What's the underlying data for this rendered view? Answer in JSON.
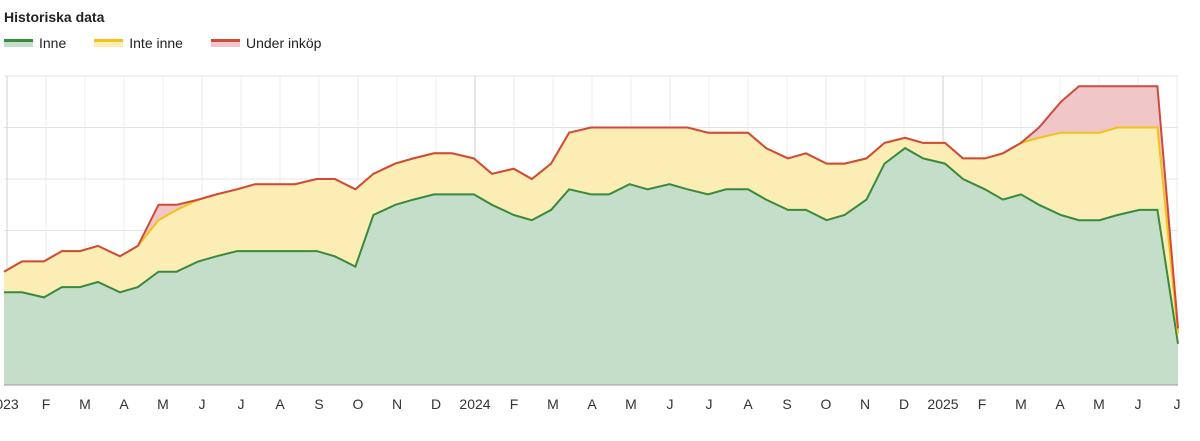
{
  "chart_data": {
    "type": "area",
    "title": "Historiska data",
    "xlabel": "",
    "ylabel": "",
    "grid": true,
    "legend_position": "top-left",
    "x_tick_labels": [
      "023",
      "F",
      "M",
      "A",
      "M",
      "J",
      "J",
      "A",
      "S",
      "O",
      "N",
      "D",
      "2024",
      "F",
      "M",
      "A",
      "M",
      "J",
      "J",
      "A",
      "S",
      "O",
      "N",
      "D",
      "2025",
      "F",
      "M",
      "A",
      "M",
      "J",
      "J"
    ],
    "series": [
      {
        "name": "Inne",
        "color": "#3a8a3e",
        "fill": "#c5dec9"
      },
      {
        "name": "Inte inne",
        "color": "#f2c21b",
        "fill": "#fbedb4"
      },
      {
        "name": "Under inköp",
        "color": "#d04a3c",
        "fill": "#f0c6c8"
      }
    ],
    "x": [
      "2023-01-01",
      "2023-01-15",
      "2023-02-01",
      "2023-02-15",
      "2023-03-01",
      "2023-03-15",
      "2023-04-01",
      "2023-04-15",
      "2023-05-01",
      "2023-05-15",
      "2023-06-01",
      "2023-06-15",
      "2023-07-01",
      "2023-07-15",
      "2023-08-01",
      "2023-08-15",
      "2023-09-01",
      "2023-09-15",
      "2023-10-01",
      "2023-10-15",
      "2023-11-01",
      "2023-11-15",
      "2023-12-01",
      "2023-12-15",
      "2024-01-01",
      "2024-01-15",
      "2024-02-01",
      "2024-02-15",
      "2024-03-01",
      "2024-03-15",
      "2024-04-01",
      "2024-04-15",
      "2024-05-01",
      "2024-05-15",
      "2024-06-01",
      "2024-06-15",
      "2024-07-01",
      "2024-07-15",
      "2024-08-01",
      "2024-08-15",
      "2024-09-01",
      "2024-09-15",
      "2024-10-01",
      "2024-10-15",
      "2024-11-01",
      "2024-11-15",
      "2024-12-01",
      "2024-12-15",
      "2025-01-01",
      "2025-01-15",
      "2025-02-01",
      "2025-02-15",
      "2025-03-01",
      "2025-03-15",
      "2025-04-01",
      "2025-04-15",
      "2025-05-01",
      "2025-05-15",
      "2025-06-01",
      "2025-06-15",
      "2025-07-01"
    ],
    "values": {
      "Inne": [
        18,
        18,
        17,
        19,
        19,
        20,
        18,
        19,
        22,
        22,
        24,
        25,
        26,
        26,
        26,
        26,
        26,
        25,
        23,
        33,
        35,
        36,
        37,
        37,
        37,
        35,
        33,
        32,
        34,
        38,
        37,
        37,
        39,
        38,
        39,
        38,
        37,
        38,
        38,
        36,
        34,
        34,
        32,
        33,
        36,
        43,
        46,
        44,
        43,
        40,
        38,
        36,
        37,
        35,
        33,
        32,
        32,
        33,
        34,
        34,
        8
      ],
      "Inte inne": [
        4,
        6,
        7,
        7,
        7,
        7,
        7,
        8,
        10,
        12,
        12,
        12,
        12,
        13,
        13,
        13,
        14,
        15,
        15,
        8,
        8,
        8,
        8,
        8,
        7,
        6,
        9,
        8,
        9,
        11,
        13,
        13,
        11,
        12,
        11,
        12,
        12,
        11,
        11,
        10,
        10,
        11,
        11,
        10,
        8,
        4,
        2,
        3,
        4,
        4,
        6,
        9,
        10,
        13,
        16,
        17,
        17,
        17,
        16,
        16,
        2
      ],
      "Under inköp": [
        0,
        0,
        0,
        0,
        0,
        0,
        0,
        0,
        3,
        1,
        0,
        0,
        0,
        0,
        0,
        0,
        0,
        0,
        0,
        0,
        0,
        0,
        0,
        0,
        0,
        0,
        0,
        0,
        0,
        0,
        0,
        0,
        0,
        0,
        0,
        0,
        0,
        0,
        0,
        0,
        0,
        0,
        0,
        0,
        0,
        0,
        0,
        0,
        0,
        0,
        0,
        0,
        0,
        2,
        6,
        9,
        9,
        8,
        8,
        8,
        1
      ]
    }
  }
}
